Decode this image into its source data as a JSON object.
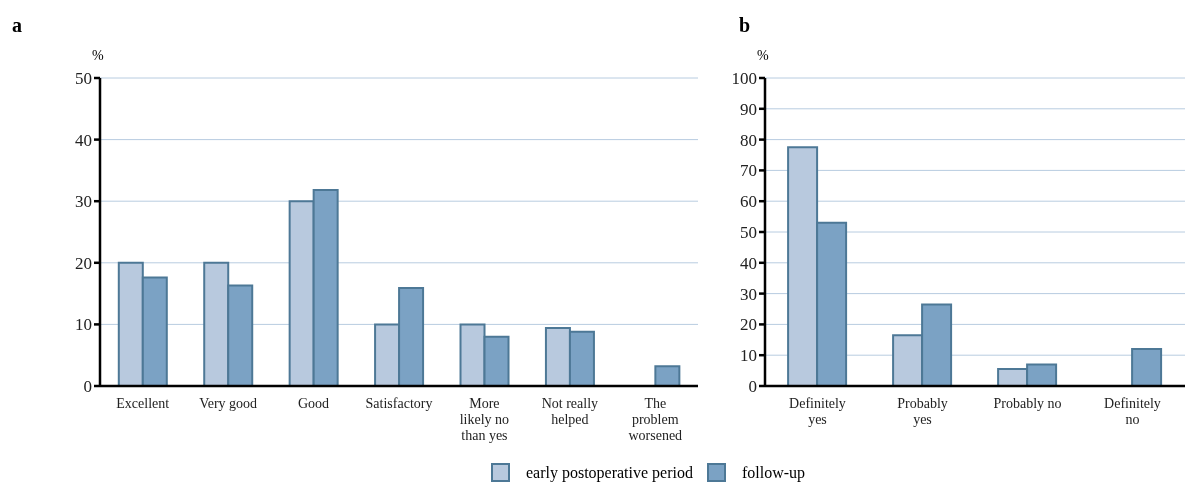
{
  "chart_data": [
    {
      "type": "bar",
      "title": "a",
      "ylabel": "%",
      "categories": [
        "Excellent",
        "Very good",
        "Good",
        "Satisfactory",
        "More likely no than yes",
        "Not really helped",
        "The problem worsened"
      ],
      "series": [
        {
          "name": "early postoperative period",
          "color": "#b8c9de",
          "values": [
            20,
            20,
            30,
            10,
            10,
            9.4,
            null
          ]
        },
        {
          "name": "follow-up",
          "color": "#7ba2c4",
          "values": [
            17.6,
            16.3,
            31.8,
            15.9,
            8,
            8.8,
            3.2
          ]
        }
      ],
      "ylim": [
        0,
        50
      ],
      "yticks": [
        0,
        10,
        20,
        30,
        40,
        50
      ],
      "grid": "y",
      "legend": "bottom"
    },
    {
      "type": "bar",
      "title": "b",
      "ylabel": "%",
      "categories": [
        "Definitely yes",
        "Probably yes",
        "Probably no",
        "Definitely no"
      ],
      "series": [
        {
          "color": "#b8c9de",
          "values": [
            77.5,
            16.5,
            5.5,
            null
          ]
        },
        {
          "color": "#7ba2c4",
          "values": [
            53,
            26.5,
            7,
            12
          ]
        }
      ],
      "ylim": [
        0,
        100
      ],
      "yticks": [
        0,
        10,
        20,
        30,
        40,
        50,
        60,
        70,
        80,
        90,
        100
      ],
      "grid": "y"
    }
  ]
}
